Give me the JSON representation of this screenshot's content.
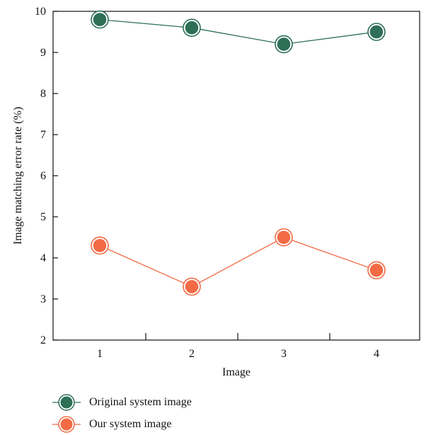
{
  "chart_data": {
    "type": "line",
    "title": "",
    "xlabel": "Image",
    "ylabel": "Image matching error rate (%)",
    "x": [
      1,
      2,
      3,
      4
    ],
    "x_tick_labels": [
      "1",
      "2",
      "3",
      "4"
    ],
    "ylim": [
      2,
      10
    ],
    "y_ticks": [
      2,
      3,
      4,
      5,
      6,
      7,
      8,
      9,
      10
    ],
    "grid": false,
    "legend_position": "bottom",
    "series": [
      {
        "name": "Original system image",
        "color": "#2e6f57",
        "values": [
          9.8,
          9.6,
          9.2,
          9.5
        ]
      },
      {
        "name": "Our system image",
        "color": "#f26b45",
        "values": [
          4.3,
          3.3,
          4.5,
          3.7
        ]
      }
    ]
  }
}
